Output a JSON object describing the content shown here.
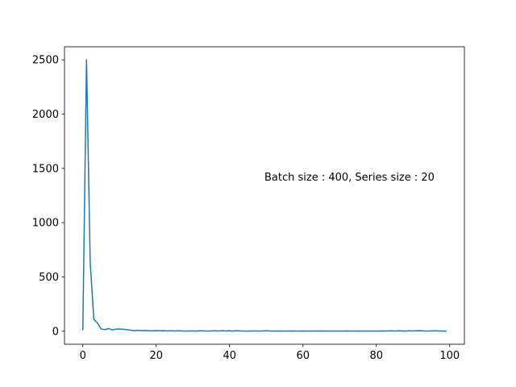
{
  "chart_data": {
    "type": "line",
    "title": "",
    "xlabel": "",
    "ylabel": "",
    "annotation": "Batch size : 400, Series size : 20",
    "xlim": [
      -5,
      104
    ],
    "ylim": [
      -120,
      2620
    ],
    "grid": false,
    "x_ticks": [
      0,
      20,
      40,
      60,
      80,
      100
    ],
    "y_ticks": [
      0,
      500,
      1000,
      1500,
      2000,
      2500
    ],
    "colors": {
      "line": "#1f77b4",
      "axes": "#000000",
      "background": "#ffffff"
    },
    "series": [
      {
        "x": [
          0,
          1,
          2,
          3,
          4,
          5,
          6,
          7,
          8,
          9,
          10,
          11,
          12,
          13,
          14,
          15,
          16,
          17,
          18,
          19,
          20,
          21,
          22,
          23,
          24,
          25,
          26,
          27,
          28,
          29,
          30,
          31,
          32,
          33,
          34,
          35,
          36,
          37,
          38,
          39,
          40,
          41,
          42,
          43,
          44,
          45,
          46,
          47,
          48,
          49,
          50,
          51,
          52,
          53,
          54,
          55,
          56,
          57,
          58,
          59,
          60,
          61,
          62,
          63,
          64,
          65,
          66,
          67,
          68,
          69,
          70,
          71,
          72,
          73,
          74,
          75,
          76,
          77,
          78,
          79,
          80,
          81,
          82,
          83,
          84,
          85,
          86,
          87,
          88,
          89,
          90,
          91,
          92,
          93,
          94,
          95,
          96,
          97,
          98,
          99
        ],
        "y": [
          15,
          2500,
          640,
          110,
          75,
          20,
          15,
          25,
          12,
          20,
          20,
          18,
          15,
          10,
          5,
          8,
          5,
          7,
          5,
          4,
          6,
          4,
          5,
          3,
          4,
          3,
          4,
          3,
          2,
          3,
          3,
          2,
          4,
          3,
          2,
          3,
          4,
          3,
          5,
          3,
          4,
          2,
          5,
          3,
          2,
          2,
          3,
          3,
          2,
          3,
          4,
          3,
          2,
          2,
          3,
          2,
          2,
          3,
          2,
          2,
          3,
          2,
          2,
          3,
          2,
          3,
          2,
          2,
          2,
          2,
          2,
          2,
          3,
          2,
          2,
          3,
          2,
          2,
          2,
          2,
          2,
          3,
          2,
          3,
          4,
          2,
          4,
          3,
          2,
          4,
          3,
          4,
          5,
          3,
          2,
          3,
          4,
          3,
          2,
          2
        ]
      }
    ]
  }
}
